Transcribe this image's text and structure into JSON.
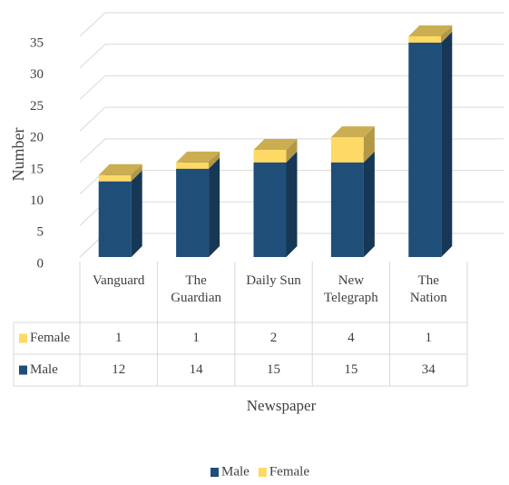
{
  "chart_data": {
    "type": "bar",
    "stacked": true,
    "y_label": "Number",
    "x_label": "Newspaper",
    "categories": [
      "Vanguard",
      "The Guardian",
      "Daily Sun",
      "New Telegraph",
      "The Nation"
    ],
    "series": [
      {
        "name": "Male",
        "color": "#1f4e79",
        "values": [
          12,
          14,
          15,
          15,
          34
        ]
      },
      {
        "name": "Female",
        "color": "#ffd966",
        "values": [
          1,
          1,
          2,
          4,
          1
        ]
      }
    ],
    "ylim": [
      0,
      35
    ],
    "yticks": [
      0,
      5,
      10,
      15,
      20,
      25,
      30,
      35
    ],
    "grid": true,
    "legend": "bottom",
    "data_table": true
  }
}
